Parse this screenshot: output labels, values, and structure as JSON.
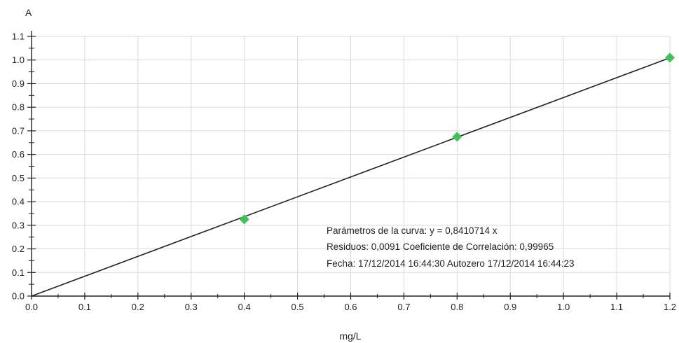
{
  "chart_data": {
    "type": "scatter",
    "title": "",
    "xlabel": "mg/L",
    "ylabel": "A",
    "xlim": [
      0,
      1.2
    ],
    "ylim": [
      0,
      1.1
    ],
    "grid": true,
    "x_ticks": [
      "0.0",
      "0.1",
      "0.2",
      "0.3",
      "0.4",
      "0.5",
      "0.6",
      "0.7",
      "0.8",
      "0.9",
      "1.0",
      "1.1",
      "1.2"
    ],
    "y_ticks": [
      "0.0",
      "0.1",
      "0.2",
      "0.3",
      "0.4",
      "0.5",
      "0.6",
      "0.7",
      "0.8",
      "0.9",
      "1.0",
      "1.1"
    ],
    "series": [
      {
        "type": "scatter",
        "marker": "diamond",
        "color": "#3cc256",
        "points": [
          {
            "x": 0.4,
            "y": 0.325
          },
          {
            "x": 0.8,
            "y": 0.675
          },
          {
            "x": 1.2,
            "y": 1.01
          }
        ]
      },
      {
        "type": "line",
        "color": "#222222",
        "slope": 0.8410714,
        "x_range": [
          0,
          1.2
        ]
      }
    ],
    "annotations": [
      "Parámetros de la curva: y  =  0,8410714 x",
      "Residuos: 0,0091     Coeficiente de Correlación: 0,99965",
      "Fecha: 17/12/2014 16:44:30  Autozero 17/12/2014 16:44:23"
    ]
  }
}
